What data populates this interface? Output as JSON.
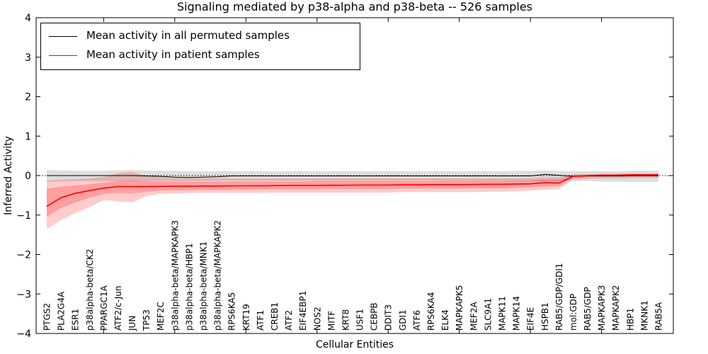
{
  "figure": {
    "title": "Signaling mediated by p38-alpha and p38-beta -- 526 samples",
    "xlabel": "Cellular Entities",
    "ylabel": "Inferred Activity"
  },
  "legend": {
    "entries": [
      {
        "label": "Mean activity in all permuted samples",
        "color": "#000000"
      },
      {
        "label": "Mean activity in patient samples",
        "color": "#ff0000"
      }
    ]
  },
  "colors": {
    "permuted_line": "#000000",
    "patient_line": "#ff0000",
    "permuted_band": "#000000",
    "patient_band": "#ff0000",
    "axis": "#000000"
  },
  "chart_data": {
    "type": "line",
    "title": "Signaling mediated by p38-alpha and p38-beta -- 526 samples",
    "xlabel": "Cellular Entities",
    "ylabel": "Inferred Activity",
    "ylim": [
      -4,
      4
    ],
    "yticks": [
      4,
      3,
      2,
      1,
      0,
      -1,
      -2,
      -3,
      -4
    ],
    "xtick_indices": [
      4,
      9,
      14,
      19,
      24,
      29,
      34,
      39
    ],
    "grid": false,
    "legend_position": "upper left",
    "zero_line": {
      "style": "dotted",
      "color": "#000000",
      "y": 0
    },
    "categories": [
      "PTGS2",
      "PLA2G4A",
      "ESR1",
      "p38alpha-beta/CK2",
      "PPARGC1A",
      "ATF2/c-Jun",
      "JUN",
      "TP53",
      "MEF2C",
      "p38alpha-beta/MAPKAPK3",
      "p38alpha-beta/HBP1",
      "p38alpha-beta/MNK1",
      "p38alpha-beta/MAPKAPK2",
      "RPS6KA5",
      "KRT19",
      "ATF1",
      "CREB1",
      "ATF2",
      "EIF4EBP1",
      "NOS2",
      "MITF",
      "KRT8",
      "USF1",
      "CEBPB",
      "DDIT3",
      "GDI1",
      "ATF6",
      "RPS6KA4",
      "ELK4",
      "MAPKAPK5",
      "MEF2A",
      "SLC9A1",
      "MAPK11",
      "MAPK14",
      "EIF4E",
      "HSPB1",
      "RAB5/GDP/GDI1",
      "mol:GDP",
      "RAB5/GDP",
      "MAPKAPK3",
      "MAPKAPK2",
      "HBP1",
      "MKNK1",
      "RAB5A"
    ],
    "series": [
      {
        "name": "Mean activity in all permuted samples",
        "color": "#000000",
        "width": 1,
        "values": [
          0.0,
          0.0,
          0.0,
          0.0,
          0.0,
          0.0,
          0.0,
          -0.01,
          -0.02,
          -0.04,
          -0.05,
          -0.04,
          -0.03,
          -0.01,
          -0.01,
          -0.01,
          -0.01,
          -0.01,
          -0.01,
          -0.01,
          -0.01,
          -0.01,
          -0.01,
          -0.01,
          -0.01,
          -0.01,
          -0.01,
          -0.01,
          -0.01,
          -0.01,
          -0.01,
          -0.01,
          -0.01,
          -0.01,
          -0.01,
          0.03,
          0.01,
          -0.02,
          -0.01,
          -0.01,
          -0.01,
          0.0,
          0.0,
          0.0
        ]
      },
      {
        "name": "Mean activity in patient samples",
        "color": "#ff0000",
        "width": 1.6,
        "values": [
          -0.78,
          -0.56,
          -0.45,
          -0.38,
          -0.32,
          -0.28,
          -0.28,
          -0.28,
          -0.275,
          -0.27,
          -0.27,
          -0.265,
          -0.265,
          -0.26,
          -0.26,
          -0.26,
          -0.255,
          -0.25,
          -0.25,
          -0.25,
          -0.245,
          -0.245,
          -0.24,
          -0.24,
          -0.24,
          -0.235,
          -0.235,
          -0.23,
          -0.23,
          -0.23,
          -0.225,
          -0.22,
          -0.22,
          -0.215,
          -0.21,
          -0.18,
          -0.19,
          -0.02,
          0.0,
          0.01,
          0.01,
          0.02,
          0.02,
          0.02
        ]
      }
    ],
    "bands": [
      {
        "name": "permuted-envelope",
        "color": "#000000",
        "opacity": 0.13,
        "upper": [
          0.14,
          0.13,
          0.12,
          0.12,
          0.12,
          0.13,
          0.14,
          0.13,
          0.12,
          0.12,
          0.11,
          0.11,
          0.11,
          0.11,
          0.11,
          0.11,
          0.11,
          0.11,
          0.11,
          0.11,
          0.11,
          0.11,
          0.11,
          0.11,
          0.11,
          0.11,
          0.11,
          0.11,
          0.11,
          0.11,
          0.11,
          0.11,
          0.11,
          0.12,
          0.12,
          0.13,
          0.12,
          0.11,
          0.11,
          0.11,
          0.11,
          0.12,
          0.12,
          0.12
        ],
        "lower": [
          -0.16,
          -0.15,
          -0.14,
          -0.14,
          -0.14,
          -0.14,
          -0.14,
          -0.14,
          -0.14,
          -0.14,
          -0.13,
          -0.13,
          -0.13,
          -0.13,
          -0.13,
          -0.13,
          -0.13,
          -0.13,
          -0.13,
          -0.13,
          -0.13,
          -0.13,
          -0.13,
          -0.13,
          -0.13,
          -0.13,
          -0.13,
          -0.13,
          -0.13,
          -0.13,
          -0.13,
          -0.13,
          -0.13,
          -0.14,
          -0.14,
          -0.15,
          -0.14,
          -0.14,
          -0.14,
          -0.15,
          -0.15,
          -0.16,
          -0.16,
          -0.16
        ]
      },
      {
        "name": "patient-envelope-outer",
        "color": "#ff0000",
        "opacity": 0.2,
        "upper": [
          -0.13,
          -0.1,
          -0.09,
          -0.07,
          -0.04,
          0.06,
          0.09,
          -0.01,
          -0.05,
          -0.06,
          -0.07,
          -0.07,
          -0.07,
          -0.07,
          -0.07,
          -0.07,
          -0.07,
          -0.07,
          -0.07,
          -0.07,
          -0.07,
          -0.07,
          -0.07,
          -0.07,
          -0.07,
          -0.07,
          -0.07,
          -0.07,
          -0.07,
          -0.07,
          -0.07,
          -0.07,
          -0.07,
          -0.07,
          -0.06,
          -0.05,
          -0.04,
          0.03,
          0.04,
          0.04,
          0.05,
          0.05,
          0.05,
          0.06
        ],
        "lower": [
          -1.35,
          -1.13,
          -0.95,
          -0.8,
          -0.62,
          -0.65,
          -0.68,
          -0.52,
          -0.46,
          -0.45,
          -0.44,
          -0.44,
          -0.44,
          -0.44,
          -0.44,
          -0.44,
          -0.43,
          -0.43,
          -0.43,
          -0.43,
          -0.43,
          -0.43,
          -0.43,
          -0.43,
          -0.43,
          -0.42,
          -0.42,
          -0.42,
          -0.42,
          -0.42,
          -0.42,
          -0.41,
          -0.41,
          -0.4,
          -0.38,
          -0.36,
          -0.34,
          -0.1,
          -0.08,
          -0.07,
          -0.07,
          -0.06,
          -0.06,
          -0.06
        ]
      },
      {
        "name": "patient-envelope-inner",
        "color": "#ff0000",
        "opacity": 0.22,
        "upper": [
          -0.33,
          -0.28,
          -0.25,
          -0.22,
          -0.18,
          -0.13,
          -0.12,
          -0.14,
          -0.15,
          -0.15,
          -0.15,
          -0.15,
          -0.15,
          -0.15,
          -0.15,
          -0.15,
          -0.15,
          -0.15,
          -0.15,
          -0.14,
          -0.14,
          -0.14,
          -0.14,
          -0.14,
          -0.14,
          -0.14,
          -0.14,
          -0.14,
          -0.13,
          -0.13,
          -0.13,
          -0.13,
          -0.13,
          -0.13,
          -0.12,
          -0.1,
          -0.1,
          0.0,
          0.01,
          0.01,
          0.02,
          0.02,
          0.02,
          0.03
        ],
        "lower": [
          -1.05,
          -0.82,
          -0.68,
          -0.56,
          -0.47,
          -0.44,
          -0.45,
          -0.41,
          -0.38,
          -0.37,
          -0.37,
          -0.36,
          -0.36,
          -0.36,
          -0.36,
          -0.35,
          -0.35,
          -0.35,
          -0.35,
          -0.35,
          -0.34,
          -0.34,
          -0.34,
          -0.34,
          -0.34,
          -0.33,
          -0.33,
          -0.33,
          -0.33,
          -0.33,
          -0.32,
          -0.32,
          -0.32,
          -0.31,
          -0.3,
          -0.28,
          -0.27,
          -0.05,
          -0.04,
          -0.03,
          -0.03,
          -0.03,
          -0.03,
          -0.03
        ]
      }
    ]
  }
}
